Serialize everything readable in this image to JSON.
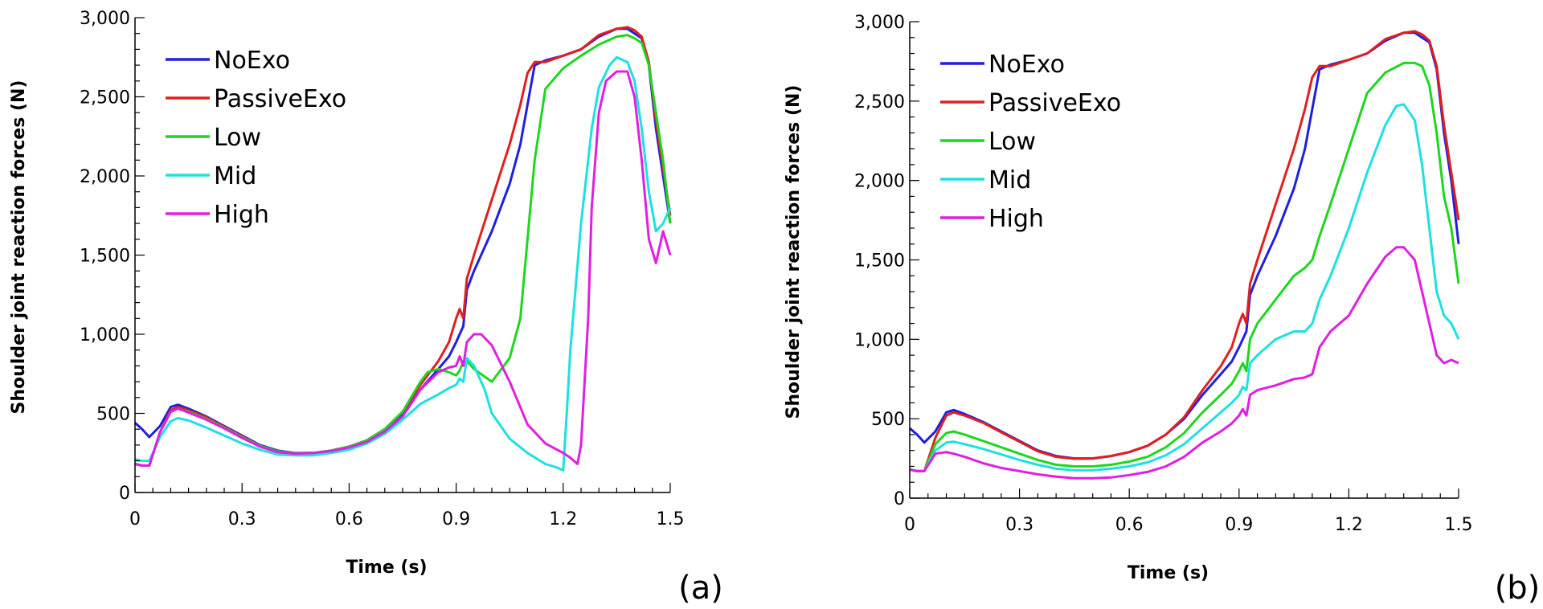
{
  "chart_data": [
    {
      "type": "line",
      "panel_label": "(a)",
      "xlabel": "Time (s)",
      "ylabel": "Shoulder joint reaction forces (N)",
      "xlim": [
        0,
        1.5
      ],
      "ylim": [
        0,
        3000
      ],
      "xticks": [
        "0",
        "0.3",
        "0.6",
        "0.9",
        "1.2",
        "1.5"
      ],
      "yticks": [
        "0",
        "500",
        "1,000",
        "1,500",
        "2,000",
        "2,500",
        "3,000"
      ],
      "grid": false,
      "legend_position": "top-left",
      "series": [
        {
          "name": "NoExo",
          "color": "#1f1fe0",
          "x": [
            0,
            0.02,
            0.04,
            0.07,
            0.1,
            0.12,
            0.15,
            0.2,
            0.25,
            0.3,
            0.35,
            0.4,
            0.45,
            0.5,
            0.55,
            0.6,
            0.65,
            0.7,
            0.75,
            0.8,
            0.85,
            0.88,
            0.9,
            0.91,
            0.92,
            0.93,
            0.95,
            1.0,
            1.05,
            1.08,
            1.1,
            1.12,
            1.15,
            1.2,
            1.25,
            1.3,
            1.35,
            1.38,
            1.4,
            1.42,
            1.44,
            1.46,
            1.48,
            1.5
          ],
          "y": [
            440,
            400,
            350,
            420,
            540,
            555,
            530,
            480,
            420,
            360,
            300,
            265,
            250,
            250,
            265,
            290,
            330,
            400,
            500,
            650,
            780,
            860,
            950,
            1000,
            1050,
            1280,
            1400,
            1650,
            1950,
            2200,
            2450,
            2700,
            2730,
            2760,
            2800,
            2880,
            2930,
            2930,
            2900,
            2870,
            2700,
            2300,
            2000,
            1700
          ]
        },
        {
          "name": "PassiveExo",
          "color": "#e01f1f",
          "x": [
            0,
            0.02,
            0.04,
            0.07,
            0.1,
            0.12,
            0.15,
            0.2,
            0.25,
            0.3,
            0.35,
            0.4,
            0.45,
            0.5,
            0.55,
            0.6,
            0.65,
            0.7,
            0.75,
            0.8,
            0.85,
            0.88,
            0.9,
            0.91,
            0.92,
            0.93,
            0.95,
            1.0,
            1.05,
            1.08,
            1.1,
            1.12,
            1.15,
            1.2,
            1.25,
            1.3,
            1.35,
            1.38,
            1.4,
            1.42,
            1.44,
            1.46,
            1.48,
            1.5
          ],
          "y": [
            180,
            170,
            170,
            380,
            520,
            540,
            520,
            475,
            415,
            355,
            295,
            260,
            248,
            250,
            265,
            290,
            330,
            400,
            510,
            680,
            830,
            950,
            1100,
            1160,
            1100,
            1350,
            1500,
            1850,
            2200,
            2450,
            2650,
            2720,
            2720,
            2760,
            2800,
            2890,
            2930,
            2940,
            2920,
            2880,
            2720,
            2350,
            2050,
            1750
          ]
        },
        {
          "name": "Low",
          "color": "#1fd61f",
          "x": [
            0,
            0.02,
            0.04,
            0.07,
            0.1,
            0.12,
            0.15,
            0.2,
            0.25,
            0.3,
            0.35,
            0.4,
            0.45,
            0.5,
            0.55,
            0.6,
            0.65,
            0.7,
            0.75,
            0.8,
            0.82,
            0.85,
            0.88,
            0.9,
            0.91,
            0.92,
            0.93,
            0.95,
            1.0,
            1.05,
            1.08,
            1.1,
            1.12,
            1.15,
            1.2,
            1.25,
            1.3,
            1.35,
            1.38,
            1.4,
            1.42,
            1.44,
            1.46,
            1.48,
            1.5
          ],
          "y": [
            180,
            170,
            170,
            380,
            510,
            530,
            510,
            465,
            410,
            350,
            295,
            260,
            248,
            250,
            265,
            290,
            330,
            400,
            510,
            700,
            760,
            780,
            760,
            740,
            770,
            830,
            830,
            780,
            700,
            850,
            1100,
            1600,
            2100,
            2550,
            2680,
            2760,
            2830,
            2880,
            2890,
            2870,
            2840,
            2700,
            2400,
            2100,
            1700
          ]
        },
        {
          "name": "Mid",
          "color": "#1fe0e0",
          "x": [
            0,
            0.02,
            0.04,
            0.07,
            0.1,
            0.12,
            0.15,
            0.2,
            0.25,
            0.3,
            0.35,
            0.4,
            0.45,
            0.5,
            0.55,
            0.6,
            0.65,
            0.7,
            0.75,
            0.8,
            0.85,
            0.88,
            0.9,
            0.91,
            0.92,
            0.93,
            0.95,
            0.98,
            1.0,
            1.05,
            1.1,
            1.15,
            1.18,
            1.2,
            1.21,
            1.22,
            1.25,
            1.28,
            1.3,
            1.33,
            1.35,
            1.38,
            1.4,
            1.42,
            1.44,
            1.46,
            1.48,
            1.5
          ],
          "y": [
            210,
            200,
            200,
            350,
            450,
            470,
            455,
            410,
            360,
            310,
            270,
            240,
            235,
            235,
            250,
            270,
            310,
            370,
            460,
            560,
            620,
            660,
            680,
            720,
            700,
            850,
            800,
            650,
            500,
            340,
            250,
            180,
            160,
            140,
            500,
            900,
            1700,
            2300,
            2560,
            2700,
            2750,
            2720,
            2600,
            2300,
            1900,
            1650,
            1700,
            1800
          ]
        },
        {
          "name": "High",
          "color": "#e01fe0",
          "x": [
            0,
            0.02,
            0.04,
            0.07,
            0.1,
            0.12,
            0.15,
            0.2,
            0.25,
            0.3,
            0.35,
            0.4,
            0.45,
            0.5,
            0.55,
            0.6,
            0.65,
            0.7,
            0.75,
            0.8,
            0.85,
            0.88,
            0.9,
            0.91,
            0.92,
            0.93,
            0.95,
            0.97,
            1.0,
            1.05,
            1.1,
            1.15,
            1.2,
            1.22,
            1.24,
            1.25,
            1.27,
            1.28,
            1.3,
            1.32,
            1.35,
            1.38,
            1.4,
            1.42,
            1.44,
            1.46,
            1.48,
            1.5
          ],
          "y": [
            180,
            170,
            170,
            380,
            510,
            530,
            505,
            460,
            405,
            345,
            290,
            255,
            245,
            250,
            262,
            285,
            320,
            385,
            480,
            650,
            760,
            790,
            800,
            860,
            800,
            950,
            1000,
            1000,
            930,
            700,
            430,
            310,
            250,
            220,
            180,
            300,
            1100,
            1800,
            2400,
            2600,
            2660,
            2660,
            2500,
            2100,
            1600,
            1450,
            1650,
            1500
          ]
        }
      ]
    },
    {
      "type": "line",
      "panel_label": "(b)",
      "xlabel": "Time (s)",
      "ylabel": "Shoulder joint reaction forces (N)",
      "xlim": [
        0,
        1.5
      ],
      "ylim": [
        0,
        3000
      ],
      "xticks": [
        "0",
        "0.3",
        "0.6",
        "0.9",
        "1.2",
        "1.5"
      ],
      "yticks": [
        "0",
        "500",
        "1,000",
        "1,500",
        "2,000",
        "2,500",
        "3,000"
      ],
      "grid": false,
      "legend_position": "top-left",
      "series": [
        {
          "name": "NoExo",
          "color": "#1f1fe0",
          "x": [
            0,
            0.02,
            0.04,
            0.07,
            0.1,
            0.12,
            0.15,
            0.2,
            0.25,
            0.3,
            0.35,
            0.4,
            0.45,
            0.5,
            0.55,
            0.6,
            0.65,
            0.7,
            0.75,
            0.8,
            0.85,
            0.88,
            0.9,
            0.91,
            0.92,
            0.93,
            0.95,
            1.0,
            1.05,
            1.08,
            1.1,
            1.12,
            1.15,
            1.2,
            1.25,
            1.3,
            1.35,
            1.38,
            1.4,
            1.42,
            1.44,
            1.46,
            1.48,
            1.5
          ],
          "y": [
            440,
            400,
            350,
            420,
            540,
            555,
            530,
            480,
            420,
            360,
            300,
            265,
            250,
            250,
            265,
            290,
            330,
            400,
            500,
            650,
            780,
            860,
            950,
            1000,
            1050,
            1280,
            1400,
            1650,
            1950,
            2200,
            2450,
            2700,
            2730,
            2760,
            2800,
            2880,
            2930,
            2930,
            2900,
            2870,
            2700,
            2300,
            2000,
            1600
          ]
        },
        {
          "name": "PassiveExo",
          "color": "#e01f1f",
          "x": [
            0,
            0.02,
            0.04,
            0.07,
            0.1,
            0.12,
            0.15,
            0.2,
            0.25,
            0.3,
            0.35,
            0.4,
            0.45,
            0.5,
            0.55,
            0.6,
            0.65,
            0.7,
            0.75,
            0.8,
            0.85,
            0.88,
            0.9,
            0.91,
            0.92,
            0.93,
            0.95,
            1.0,
            1.05,
            1.08,
            1.1,
            1.12,
            1.15,
            1.2,
            1.25,
            1.3,
            1.35,
            1.38,
            1.4,
            1.42,
            1.44,
            1.46,
            1.48,
            1.5
          ],
          "y": [
            180,
            170,
            170,
            380,
            520,
            540,
            520,
            475,
            415,
            355,
            295,
            260,
            248,
            250,
            265,
            290,
            330,
            400,
            510,
            680,
            830,
            950,
            1100,
            1160,
            1100,
            1350,
            1500,
            1850,
            2200,
            2450,
            2650,
            2720,
            2720,
            2760,
            2800,
            2890,
            2930,
            2940,
            2920,
            2880,
            2720,
            2350,
            2050,
            1750
          ]
        },
        {
          "name": "Low",
          "color": "#1fd61f",
          "x": [
            0,
            0.02,
            0.04,
            0.07,
            0.1,
            0.12,
            0.15,
            0.2,
            0.25,
            0.3,
            0.35,
            0.4,
            0.45,
            0.5,
            0.55,
            0.6,
            0.65,
            0.7,
            0.75,
            0.8,
            0.85,
            0.88,
            0.9,
            0.91,
            0.92,
            0.93,
            0.95,
            1.0,
            1.05,
            1.08,
            1.1,
            1.12,
            1.15,
            1.2,
            1.25,
            1.3,
            1.35,
            1.38,
            1.4,
            1.42,
            1.44,
            1.46,
            1.48,
            1.5
          ],
          "y": [
            180,
            170,
            170,
            340,
            410,
            420,
            400,
            360,
            320,
            280,
            240,
            210,
            200,
            200,
            210,
            230,
            260,
            320,
            410,
            540,
            650,
            720,
            800,
            850,
            800,
            1000,
            1100,
            1250,
            1400,
            1450,
            1500,
            1650,
            1850,
            2200,
            2550,
            2680,
            2740,
            2740,
            2720,
            2600,
            2300,
            1900,
            1700,
            1350
          ]
        },
        {
          "name": "Mid",
          "color": "#1fe0e0",
          "x": [
            0,
            0.02,
            0.04,
            0.07,
            0.1,
            0.12,
            0.15,
            0.2,
            0.25,
            0.3,
            0.35,
            0.4,
            0.45,
            0.5,
            0.55,
            0.6,
            0.65,
            0.7,
            0.75,
            0.8,
            0.85,
            0.88,
            0.9,
            0.91,
            0.92,
            0.93,
            0.95,
            1.0,
            1.05,
            1.08,
            1.1,
            1.12,
            1.15,
            1.2,
            1.25,
            1.3,
            1.33,
            1.35,
            1.38,
            1.4,
            1.42,
            1.44,
            1.46,
            1.48,
            1.5
          ],
          "y": [
            180,
            170,
            170,
            300,
            350,
            355,
            340,
            310,
            275,
            240,
            210,
            185,
            175,
            175,
            185,
            200,
            225,
            270,
            340,
            440,
            540,
            600,
            650,
            700,
            680,
            850,
            900,
            1000,
            1050,
            1050,
            1100,
            1250,
            1400,
            1700,
            2050,
            2350,
            2470,
            2480,
            2380,
            2100,
            1700,
            1300,
            1150,
            1100,
            1000
          ]
        },
        {
          "name": "High",
          "color": "#e01fe0",
          "x": [
            0,
            0.02,
            0.04,
            0.07,
            0.1,
            0.12,
            0.15,
            0.2,
            0.25,
            0.3,
            0.35,
            0.4,
            0.45,
            0.5,
            0.55,
            0.6,
            0.65,
            0.7,
            0.75,
            0.8,
            0.85,
            0.88,
            0.9,
            0.91,
            0.92,
            0.93,
            0.95,
            1.0,
            1.05,
            1.08,
            1.1,
            1.12,
            1.15,
            1.2,
            1.25,
            1.3,
            1.33,
            1.35,
            1.38,
            1.4,
            1.42,
            1.44,
            1.46,
            1.48,
            1.5
          ],
          "y": [
            180,
            170,
            170,
            280,
            290,
            280,
            260,
            220,
            190,
            170,
            150,
            135,
            125,
            125,
            130,
            145,
            165,
            200,
            260,
            350,
            420,
            470,
            520,
            560,
            520,
            650,
            680,
            710,
            750,
            760,
            780,
            950,
            1050,
            1150,
            1350,
            1520,
            1580,
            1580,
            1500,
            1300,
            1100,
            900,
            850,
            870,
            850
          ]
        }
      ]
    }
  ]
}
